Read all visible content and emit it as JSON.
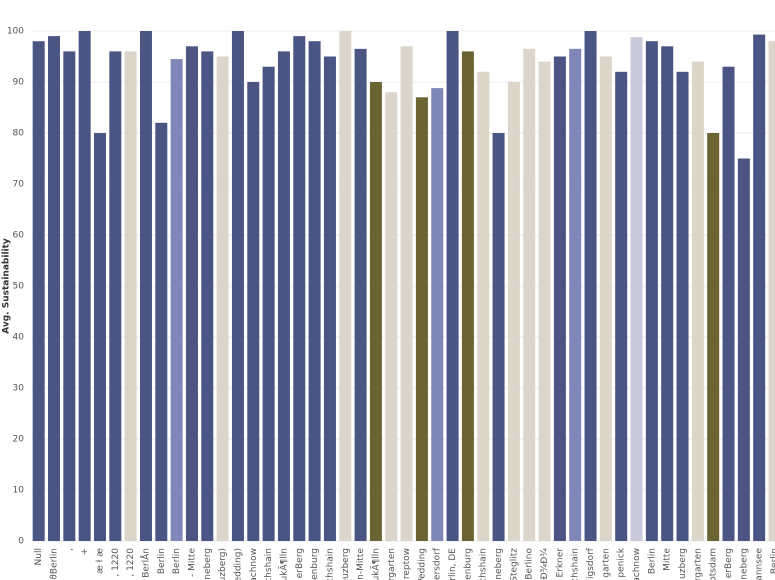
{
  "chart_data": {
    "type": "bar",
    "y_label": "Avg. Sustainability",
    "categories": [
      "Null",
      "ϑBerlin",
      ",",
      "+",
      "æ ł æ",
      ", 1220",
      ", 1220",
      "BerlÅn",
      "Berlin",
      "Berlin",
      "- Mitte",
      "neberg",
      "uzberg)",
      "edding)",
      "achnow",
      "chshain",
      "ukÃ¶lln",
      "erBerg",
      "enburg",
      "chshain",
      "euzberg",
      "n-Mitte",
      "ukÃ¶lln",
      "rgarten",
      "reptow",
      "Vedding",
      "ersdorf",
      "rlin, DE",
      "enburg",
      "chshain",
      "neberg",
      "Steglitz",
      "Berlino",
      "Đ¾Đ¾",
      "Erkner",
      "chshain",
      "igsdorf",
      "garten",
      "penick",
      "achnow",
      "Berlin",
      "Mitte",
      "uzberg",
      "rgarten",
      "otsdam",
      "erBerg",
      "neberg",
      "annsee",
      "Berlin"
    ],
    "values": [
      98,
      99,
      96,
      100,
      80,
      96,
      96,
      100,
      82,
      94.5,
      97,
      96,
      95,
      100,
      90,
      93,
      96,
      99,
      98,
      95,
      100,
      96.5,
      90,
      88,
      97,
      87,
      88.8,
      100,
      96,
      92,
      80,
      90,
      96.5,
      94,
      95,
      96.5,
      100,
      95,
      92,
      98.8,
      98,
      97,
      92,
      94,
      80,
      93,
      75,
      99.3,
      98
    ],
    "colors": [
      "#4a5583",
      "#4a5583",
      "#4a5583",
      "#4a5583",
      "#4a5583",
      "#4a5583",
      "#dcd5c9",
      "#4a5583",
      "#4a5583",
      "#7f86b8",
      "#4a5583",
      "#4a5583",
      "#dcd5c9",
      "#4a5583",
      "#4a5583",
      "#4a5583",
      "#4a5583",
      "#4a5583",
      "#4a5583",
      "#4a5583",
      "#dcd5c9",
      "#4a5583",
      "#6b6432",
      "#dcd5c9",
      "#dcd5c9",
      "#6b6432",
      "#7f86b8",
      "#4a5583",
      "#6b6432",
      "#dcd5c9",
      "#4a5583",
      "#dcd5c9",
      "#dcd5c9",
      "#dcd5c9",
      "#4a5583",
      "#7f86b8",
      "#4a5583",
      "#dcd5c9",
      "#4a5583",
      "#c9c9da",
      "#4a5583",
      "#4a5583",
      "#4a5583",
      "#dcd5c9",
      "#6b6432",
      "#4a5583",
      "#4a5583",
      "#4a5583",
      "#dcd5c9"
    ],
    "ylim": [
      0,
      100
    ],
    "yticks": [
      0,
      10,
      20,
      30,
      40,
      50,
      60,
      70,
      80,
      90,
      100
    ],
    "grid": true
  }
}
